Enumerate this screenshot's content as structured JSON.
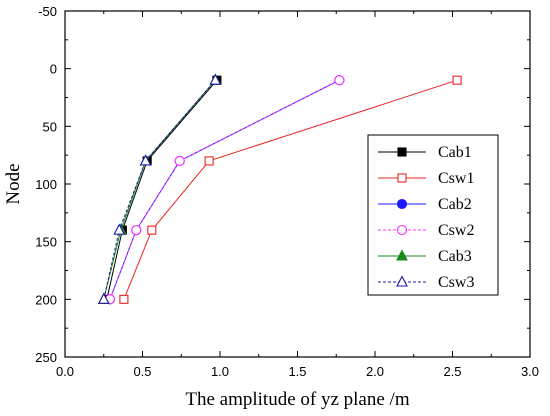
{
  "chart_data": {
    "type": "line",
    "title": "",
    "xlabel": "The amplitude of yz plane /m",
    "ylabel": "Node",
    "xlim": [
      0.0,
      3.0
    ],
    "ylim": [
      -50,
      250
    ],
    "y_inverted": true,
    "xticks": [
      "0.0",
      "0.5",
      "1.0",
      "1.5",
      "2.0",
      "2.5",
      "3.0"
    ],
    "yticks": [
      "-50",
      "0",
      "50",
      "100",
      "150",
      "200",
      "250"
    ],
    "grid": false,
    "legend_position": "right",
    "series": [
      {
        "name": "Cab1",
        "color": "#000000",
        "marker": "square",
        "filled": true,
        "dash": "solid",
        "x": [
          0.27,
          0.37,
          0.53,
          0.98
        ],
        "y": [
          200,
          140,
          80,
          10
        ]
      },
      {
        "name": "Csw1",
        "color": "#e8261e",
        "marker": "square",
        "filled": false,
        "dash": "solid",
        "x": [
          0.38,
          0.56,
          0.93,
          2.53
        ],
        "y": [
          200,
          140,
          80,
          10
        ]
      },
      {
        "name": "Cab2",
        "color": "#1a1aff",
        "marker": "circle",
        "filled": true,
        "dash": "solid",
        "x": [
          0.29,
          0.46,
          0.74,
          1.77
        ],
        "y": [
          200,
          140,
          80,
          10
        ]
      },
      {
        "name": "Csw2",
        "color": "#ff2bff",
        "marker": "circle",
        "filled": false,
        "dash": "dashed",
        "x": [
          0.29,
          0.46,
          0.74,
          1.77
        ],
        "y": [
          200,
          140,
          80,
          10
        ]
      },
      {
        "name": "Cab3",
        "color": "#1a8a1a",
        "marker": "triangle",
        "filled": true,
        "dash": "solid",
        "x": [
          0.25,
          0.36,
          0.52,
          0.97
        ],
        "y": [
          200,
          140,
          80,
          10
        ]
      },
      {
        "name": "Csw3",
        "color": "#1a1aa0",
        "marker": "triangle",
        "filled": false,
        "dash": "dashed",
        "x": [
          0.25,
          0.35,
          0.52,
          0.97
        ],
        "y": [
          200,
          140,
          80,
          10
        ]
      }
    ]
  }
}
